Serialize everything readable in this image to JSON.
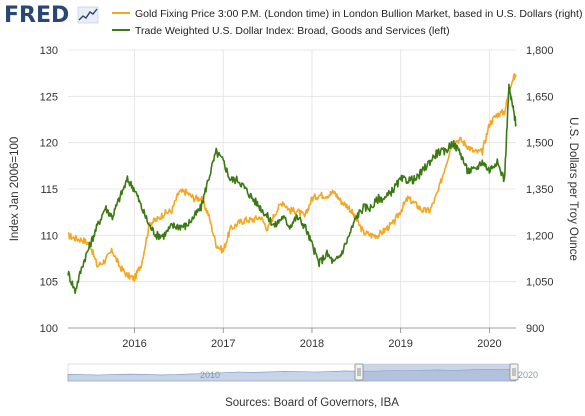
{
  "header": {
    "logo_text": "FRED"
  },
  "legend": [
    {
      "label": "Gold Fixing Price 3:00 P.M. (London time) in London Bullion Market, based in U.S. Dollars (right)",
      "color": "#f5a623"
    },
    {
      "label": "Trade Weighted U.S. Dollar Index: Broad, Goods and Services (left)",
      "color": "#3b7a12"
    }
  ],
  "footer": {
    "source": "Sources: Board of Governors, IBA"
  },
  "navigator": {
    "label_left": "2010",
    "label_right": "2020"
  },
  "chart_data": {
    "type": "line",
    "title": "",
    "x_ticks": [
      "2016",
      "2017",
      "2018",
      "2019",
      "2020"
    ],
    "xlim": [
      "2015-04",
      "2020-04"
    ],
    "left_axis": {
      "label": "Index Jan 2006=100",
      "ylim": [
        100,
        130
      ],
      "ticks": [
        "100",
        "105",
        "110",
        "115",
        "120",
        "125",
        "130"
      ]
    },
    "right_axis": {
      "label": "U.S. Dollars per Troy Ounce",
      "ylim": [
        900,
        1800
      ],
      "ticks": [
        "900",
        "1,050",
        "1,200",
        "1,350",
        "1,500",
        "1,650",
        "1,800"
      ]
    },
    "grid": true,
    "series": [
      {
        "name": "Gold Fixing Price 3:00 P.M. (London time) in London Bullion Market, based in U.S. Dollars (right)",
        "axis": "right",
        "color": "#f5a623",
        "x": [
          2015.25,
          2015.33,
          2015.42,
          2015.5,
          2015.58,
          2015.67,
          2015.75,
          2015.83,
          2015.92,
          2016.0,
          2016.08,
          2016.17,
          2016.25,
          2016.33,
          2016.42,
          2016.5,
          2016.58,
          2016.67,
          2016.75,
          2016.83,
          2016.92,
          2017.0,
          2017.08,
          2017.17,
          2017.25,
          2017.33,
          2017.42,
          2017.5,
          2017.58,
          2017.67,
          2017.75,
          2017.83,
          2017.92,
          2018.0,
          2018.08,
          2018.17,
          2018.25,
          2018.33,
          2018.42,
          2018.5,
          2018.58,
          2018.67,
          2018.75,
          2018.83,
          2018.92,
          2019.0,
          2019.08,
          2019.17,
          2019.25,
          2019.33,
          2019.42,
          2019.5,
          2019.58,
          2019.67,
          2019.75,
          2019.83,
          2019.92,
          2020.0,
          2020.08,
          2020.17,
          2020.25,
          2020.3
        ],
        "y": [
          1200,
          1190,
          1185,
          1170,
          1100,
          1120,
          1150,
          1100,
          1070,
          1060,
          1110,
          1240,
          1250,
          1270,
          1280,
          1340,
          1340,
          1320,
          1320,
          1270,
          1170,
          1150,
          1220,
          1240,
          1250,
          1250,
          1260,
          1220,
          1270,
          1310,
          1280,
          1280,
          1260,
          1320,
          1330,
          1330,
          1340,
          1310,
          1290,
          1250,
          1210,
          1200,
          1200,
          1220,
          1240,
          1280,
          1320,
          1300,
          1280,
          1280,
          1340,
          1420,
          1500,
          1510,
          1490,
          1470,
          1470,
          1560,
          1590,
          1600,
          1700,
          1720
        ]
      },
      {
        "name": "Trade Weighted U.S. Dollar Index: Broad, Goods and Services (left)",
        "axis": "left",
        "color": "#3b7a12",
        "x": [
          2015.25,
          2015.33,
          2015.42,
          2015.5,
          2015.58,
          2015.67,
          2015.75,
          2015.83,
          2015.92,
          2016.0,
          2016.08,
          2016.17,
          2016.25,
          2016.33,
          2016.42,
          2016.5,
          2016.58,
          2016.67,
          2016.75,
          2016.83,
          2016.92,
          2017.0,
          2017.08,
          2017.17,
          2017.25,
          2017.33,
          2017.42,
          2017.5,
          2017.58,
          2017.67,
          2017.75,
          2017.83,
          2017.92,
          2018.0,
          2018.08,
          2018.17,
          2018.25,
          2018.33,
          2018.42,
          2018.5,
          2018.58,
          2018.67,
          2018.75,
          2018.83,
          2018.92,
          2019.0,
          2019.08,
          2019.17,
          2019.25,
          2019.33,
          2019.42,
          2019.5,
          2019.58,
          2019.67,
          2019.75,
          2019.83,
          2019.92,
          2020.0,
          2020.08,
          2020.17,
          2020.22,
          2020.26,
          2020.3
        ],
        "y": [
          106,
          104,
          107,
          109,
          111,
          113,
          112,
          114,
          116,
          115,
          113,
          111,
          110,
          110,
          111,
          111,
          111,
          112,
          113,
          116,
          119,
          118,
          116,
          116,
          115,
          114,
          113,
          112,
          111,
          112,
          111,
          112,
          111,
          109,
          107,
          108,
          107,
          108,
          110,
          112,
          113,
          113,
          114,
          114,
          115,
          116,
          116,
          116,
          117,
          118,
          119,
          119,
          120,
          119,
          117,
          117,
          118,
          117,
          118,
          116,
          126,
          124,
          122
        ]
      }
    ]
  }
}
